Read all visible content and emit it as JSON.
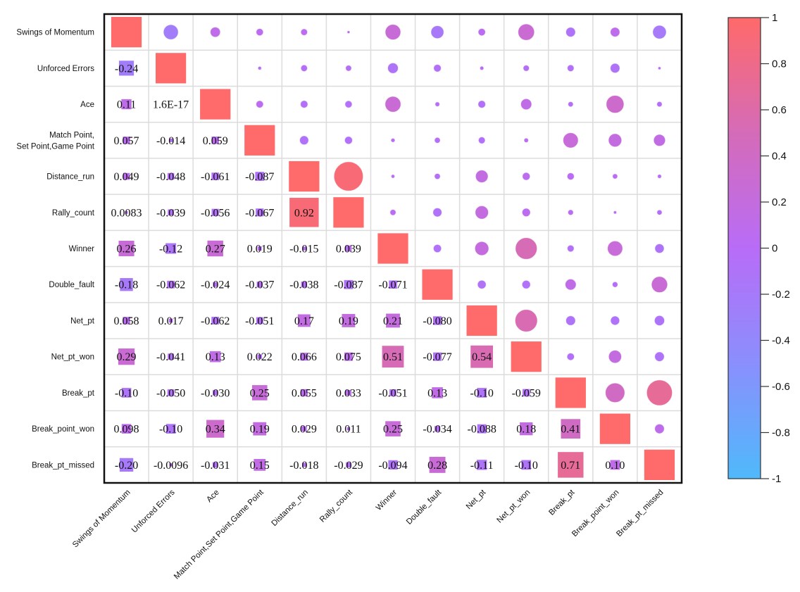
{
  "chart_data": {
    "type": "heatmap",
    "title": "",
    "variables": [
      "Swings of Momentum",
      "Unforced Errors",
      "Ace",
      "Match Point,Set Point,Game Point",
      "Distance_run",
      "Rally_count",
      "Winner",
      "Double_fault",
      "Net_pt",
      "Net_pt_won",
      "Break_pt",
      "Break_point_won",
      "Break_pt_missed"
    ],
    "row_labels": [
      [
        "Swings of Momentum"
      ],
      [
        "Unforced Errors"
      ],
      [
        "Ace"
      ],
      [
        "Match Point,",
        "Set Point,Game Point"
      ],
      [
        "Distance_run"
      ],
      [
        "Rally_count"
      ],
      [
        "Winner"
      ],
      [
        "Double_fault"
      ],
      [
        "Net_pt"
      ],
      [
        "Net_pt_won"
      ],
      [
        "Break_pt"
      ],
      [
        "Break_point_won"
      ],
      [
        "Break_pt_missed"
      ]
    ],
    "lower_triangle_labels": [
      [],
      [
        "-0.24"
      ],
      [
        "0.11",
        "1.6E-17"
      ],
      [
        "0.057",
        "-0.014",
        "0.059"
      ],
      [
        "0.049",
        "-0.048",
        "-0.061",
        "-0.087"
      ],
      [
        "0.0083",
        "-0.039",
        "-0.056",
        "-0.067",
        "0.92"
      ],
      [
        "0.26",
        "-0.12",
        "0.27",
        "0.019",
        "-0.015",
        "0.039"
      ],
      [
        "-0.18",
        "-0.062",
        "-0.024",
        "-0.037",
        "-0.038",
        "-0.087",
        "-0.071"
      ],
      [
        "0.058",
        "0.017",
        "-0.062",
        "-0.051",
        "0.17",
        "0.19",
        "0.21",
        "-0.080"
      ],
      [
        "0.29",
        "-0.041",
        "0.13",
        "0.022",
        "0.066",
        "0.075",
        "0.51",
        "-0.077",
        "0.54"
      ],
      [
        "-0.10",
        "-0.050",
        "-0.030",
        "0.25",
        "0.055",
        "0.033",
        "-0.051",
        "0.13",
        "-0.10",
        "-0.059"
      ],
      [
        "0.098",
        "-0.10",
        "0.34",
        "0.19",
        "0.029",
        "0.011",
        "0.25",
        "-0.034",
        "-0.088",
        "0.18",
        "0.41"
      ],
      [
        "-0.20",
        "-0.0096",
        "-0.031",
        "0.15",
        "-0.018",
        "-0.029",
        "-0.094",
        "0.28",
        "-0.11",
        "-0.10",
        "0.71",
        "0.10"
      ]
    ],
    "lower_triangle_shape": "square",
    "upper_triangle_shape": "circle",
    "diagonal_value": 1,
    "color_scale": {
      "min": -1,
      "max": 1,
      "stops": [
        {
          "value": -1,
          "color": "#4fb9fb"
        },
        {
          "value": -0.5,
          "color": "#8a8ffd"
        },
        {
          "value": 0,
          "color": "#b86cf7"
        },
        {
          "value": 0.5,
          "color": "#d56bb8"
        },
        {
          "value": 1,
          "color": "#ff6a6a"
        }
      ],
      "ticks": [
        "1",
        "0.8",
        "0.6",
        "0.4",
        "0.2",
        "0",
        "-0.2",
        "-0.4",
        "-0.6",
        "-0.8",
        "-1"
      ],
      "placement": "right"
    },
    "grid": true,
    "xlabel": "",
    "ylabel": ""
  }
}
